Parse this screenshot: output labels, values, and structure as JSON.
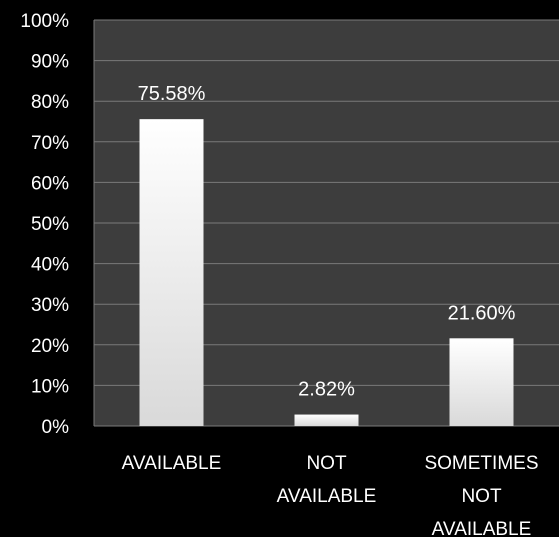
{
  "chart_data": {
    "type": "bar",
    "categories": [
      [
        "AVAILABLE"
      ],
      [
        "NOT",
        "AVAILABLE"
      ],
      [
        "SOMETIMES",
        "NOT",
        "AVAILABLE"
      ]
    ],
    "values": [
      75.58,
      2.82,
      21.6
    ],
    "data_labels": [
      "75.58%",
      "2.82%",
      "21.60%"
    ],
    "title": "",
    "xlabel": "",
    "ylabel": "",
    "ylim": [
      0,
      100
    ],
    "y_ticks": [
      "0%",
      "10%",
      "20%",
      "30%",
      "40%",
      "50%",
      "60%",
      "70%",
      "80%",
      "90%",
      "100%"
    ],
    "grid": true,
    "legend": "none",
    "colors": {
      "background": "#000000",
      "plot_area": "#3d3d3d",
      "gridline": "#7a7a7a",
      "bar_top": "#ffffff",
      "bar_bottom": "#d9d9d9",
      "text": "#ffffff"
    }
  }
}
